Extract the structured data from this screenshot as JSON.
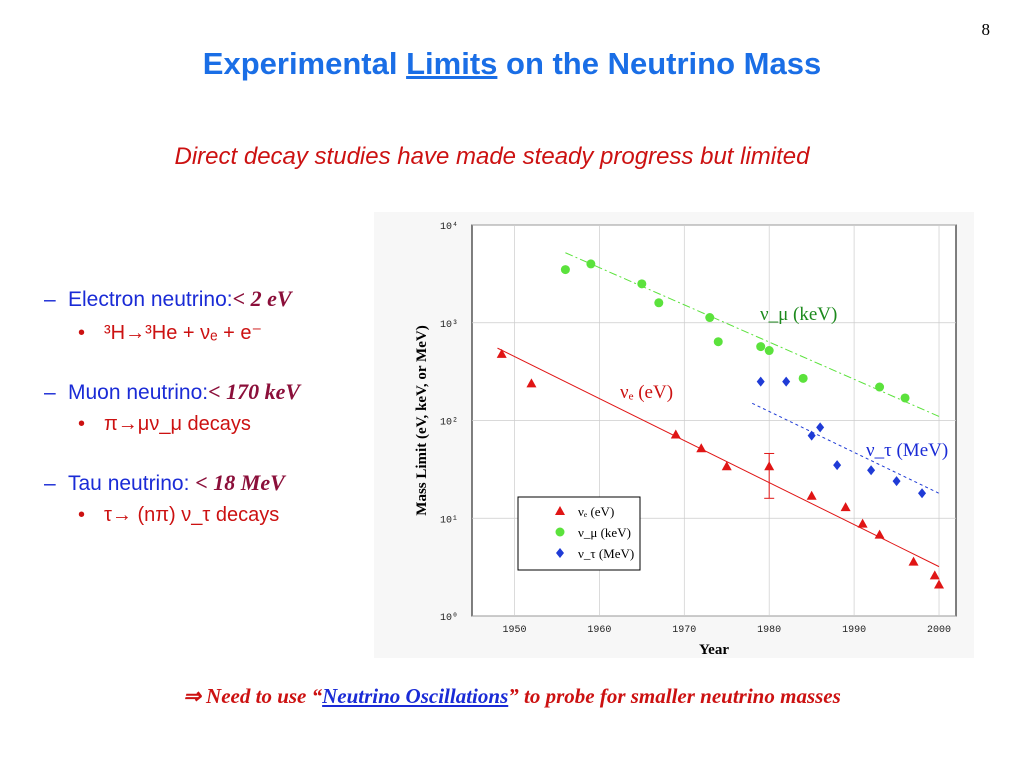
{
  "page_number": "8",
  "title": {
    "prefix": "Experimental ",
    "underlined": "Limits",
    "suffix": " on the Neutrino Mass"
  },
  "subtitle": "Direct decay studies have made steady progress but limited",
  "bullets": [
    {
      "label": "Electron neutrino:",
      "value": "< 2 eV",
      "sub": "³H→³He + νₑ + e⁻"
    },
    {
      "label": "Muon neutrino:",
      "value": "< 170 keV",
      "sub": "π→μν_μ decays"
    },
    {
      "label": "Tau neutrino: ",
      "value": "< 18 MeV",
      "sub": "τ→ (nπ) ν_τ decays"
    }
  ],
  "footer": {
    "arrow": "⇒",
    "lead": " Need to use “",
    "link": "Neutrino Oscillations",
    "tail": "” to probe for smaller neutrino masses"
  },
  "chart_data": {
    "type": "scatter",
    "title": "",
    "xlabel": "Year",
    "ylabel": "Mass Limit (eV, keV, or MeV)",
    "xlim": [
      1945,
      2002
    ],
    "ylim": [
      1,
      10000
    ],
    "yscale": "log",
    "xticks": [
      1950,
      1960,
      1970,
      1980,
      1990,
      2000
    ],
    "yticks": [
      1,
      10,
      100,
      1000,
      10000
    ],
    "yticklabels": [
      "10⁰",
      "10¹",
      "10²",
      "10³",
      "10⁴"
    ],
    "grid": true,
    "legend_position": "bottom-left",
    "series": [
      {
        "name": "νₑ (eV)",
        "label_on_chart": "νₑ (eV)",
        "marker": "triangle",
        "color": "#e01515",
        "x": [
          1948.5,
          1952,
          1969,
          1972,
          1975,
          1980,
          1985,
          1989,
          1991,
          1993,
          1997,
          1999.5,
          2000
        ],
        "y": [
          480,
          240,
          72,
          52,
          34,
          34,
          17,
          13,
          8.8,
          6.8,
          3.6,
          2.6,
          2.1
        ],
        "error_bars": [
          {
            "x": 1980,
            "low": 16,
            "high": 46
          }
        ],
        "trend": {
          "x": [
            1948,
            2000
          ],
          "y": [
            550,
            3.2
          ]
        }
      },
      {
        "name": "ν_μ (keV)",
        "label_on_chart": "ν_μ (keV)",
        "marker": "circle",
        "color": "#5be23c",
        "x": [
          1956,
          1959,
          1965,
          1967,
          1973,
          1974,
          1979,
          1980,
          1984,
          1993,
          1996
        ],
        "y": [
          3500,
          4000,
          2500,
          1600,
          1130,
          640,
          570,
          520,
          270,
          220,
          170
        ],
        "trend": {
          "x": [
            1956,
            2000
          ],
          "y": [
            5200,
            110
          ]
        }
      },
      {
        "name": "ν_τ (MeV)",
        "label_on_chart": "ν_τ (MeV)",
        "marker": "diamond",
        "color": "#1f3bd6",
        "x": [
          1979,
          1982,
          1985,
          1986,
          1988,
          1992,
          1995,
          1998
        ],
        "y": [
          250,
          250,
          70,
          85,
          35,
          31,
          24,
          18
        ],
        "trend": {
          "x": [
            1978,
            2000
          ],
          "y": [
            150,
            18
          ]
        }
      }
    ]
  },
  "colors": {
    "title": "#1a6ee6",
    "red": "#cc1111",
    "blue_text": "#1a2bd6",
    "value": "#8b0f3a"
  }
}
